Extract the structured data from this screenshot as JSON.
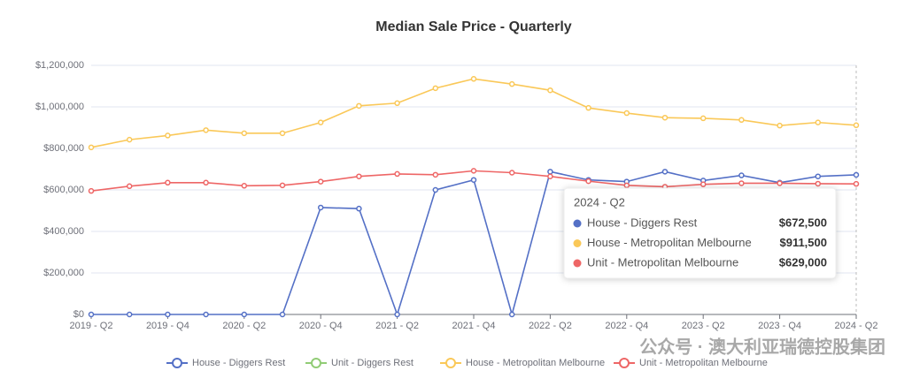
{
  "chart_data": {
    "type": "line",
    "title": "Median Sale Price - Quarterly",
    "categories": [
      "2019 - Q2",
      null,
      "2019 - Q4",
      null,
      "2020 - Q2",
      null,
      "2020 - Q4",
      null,
      "2021 - Q2",
      null,
      "2021 - Q4",
      null,
      "2022 - Q2",
      null,
      "2022 - Q4",
      null,
      "2023 - Q2",
      null,
      "2023 - Q4",
      null,
      "2024 - Q2"
    ],
    "series": [
      {
        "name": "House - Diggers Rest",
        "color": "#5470c6",
        "values": [
          0,
          0,
          0,
          0,
          0,
          0,
          515000,
          510000,
          0,
          600000,
          648000,
          0,
          688000,
          648000,
          640000,
          688000,
          645000,
          670000,
          635000,
          665000,
          672500
        ]
      },
      {
        "name": "Unit - Diggers Rest",
        "color": "#91cc75",
        "values": [
          null,
          null,
          null,
          null,
          null,
          null,
          null,
          null,
          null,
          null,
          null,
          null,
          null,
          null,
          null,
          null,
          null,
          null,
          null,
          null,
          null
        ]
      },
      {
        "name": "House - Metropolitan Melbourne",
        "color": "#fac858",
        "values": [
          805000,
          842000,
          862000,
          888000,
          873000,
          873000,
          925000,
          1005000,
          1018000,
          1090000,
          1135000,
          1110000,
          1080000,
          995000,
          970000,
          948000,
          945000,
          937000,
          910000,
          925000,
          911500
        ]
      },
      {
        "name": "Unit - Metropolitan Melbourne",
        "color": "#ee6666",
        "values": [
          595000,
          618000,
          635000,
          635000,
          620000,
          622000,
          640000,
          665000,
          677000,
          673000,
          692000,
          683000,
          665000,
          642000,
          622000,
          615000,
          627000,
          632000,
          632000,
          630000,
          629000
        ]
      }
    ],
    "ylim": [
      0,
      1200000
    ],
    "yticks": [
      {
        "value": 0,
        "label": "$0"
      },
      {
        "value": 200000,
        "label": "$200,000"
      },
      {
        "value": 400000,
        "label": "$400,000"
      },
      {
        "value": 600000,
        "label": "$600,000"
      },
      {
        "value": 800000,
        "label": "$800,000"
      },
      {
        "value": 1000000,
        "label": "$1,000,000"
      },
      {
        "value": 1200000,
        "label": "$1,200,000"
      }
    ],
    "grid": true,
    "legend": "bottom",
    "tooltip": {
      "title": "2024 - Q2",
      "rows": [
        {
          "name": "House - Diggers Rest",
          "value": "$672,500"
        },
        {
          "name": "House - Metropolitan Melbourne",
          "value": "$911,500"
        },
        {
          "name": "Unit - Metropolitan Melbourne",
          "value": "$629,000"
        }
      ]
    },
    "watermark": "公众号 · 澳大利亚瑞德控股集团"
  }
}
